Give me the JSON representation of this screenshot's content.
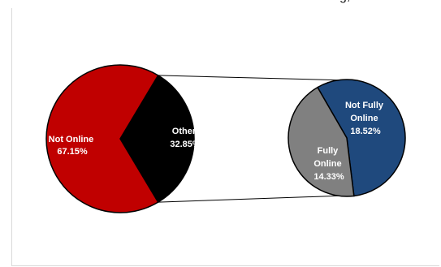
{
  "caption_fragment": "g,",
  "chart_data": {
    "type": "bar-of-pie",
    "main_pie": {
      "slices": [
        {
          "label": "Not Online",
          "value_label": "67.15%",
          "value": 67.15,
          "color": "#c00000"
        },
        {
          "label": "Other",
          "value_label": "32.85%",
          "value": 32.85,
          "color": "#000000"
        }
      ]
    },
    "secondary_pie": {
      "source": "Other",
      "slices": [
        {
          "label": "Not Fully Online",
          "value_label": "18.52%",
          "value": 18.52,
          "color": "#1f497d"
        },
        {
          "label": "Fully Online",
          "value_label": "14.33%",
          "value": 14.33,
          "color": "#808080"
        }
      ]
    },
    "legend": "none"
  }
}
